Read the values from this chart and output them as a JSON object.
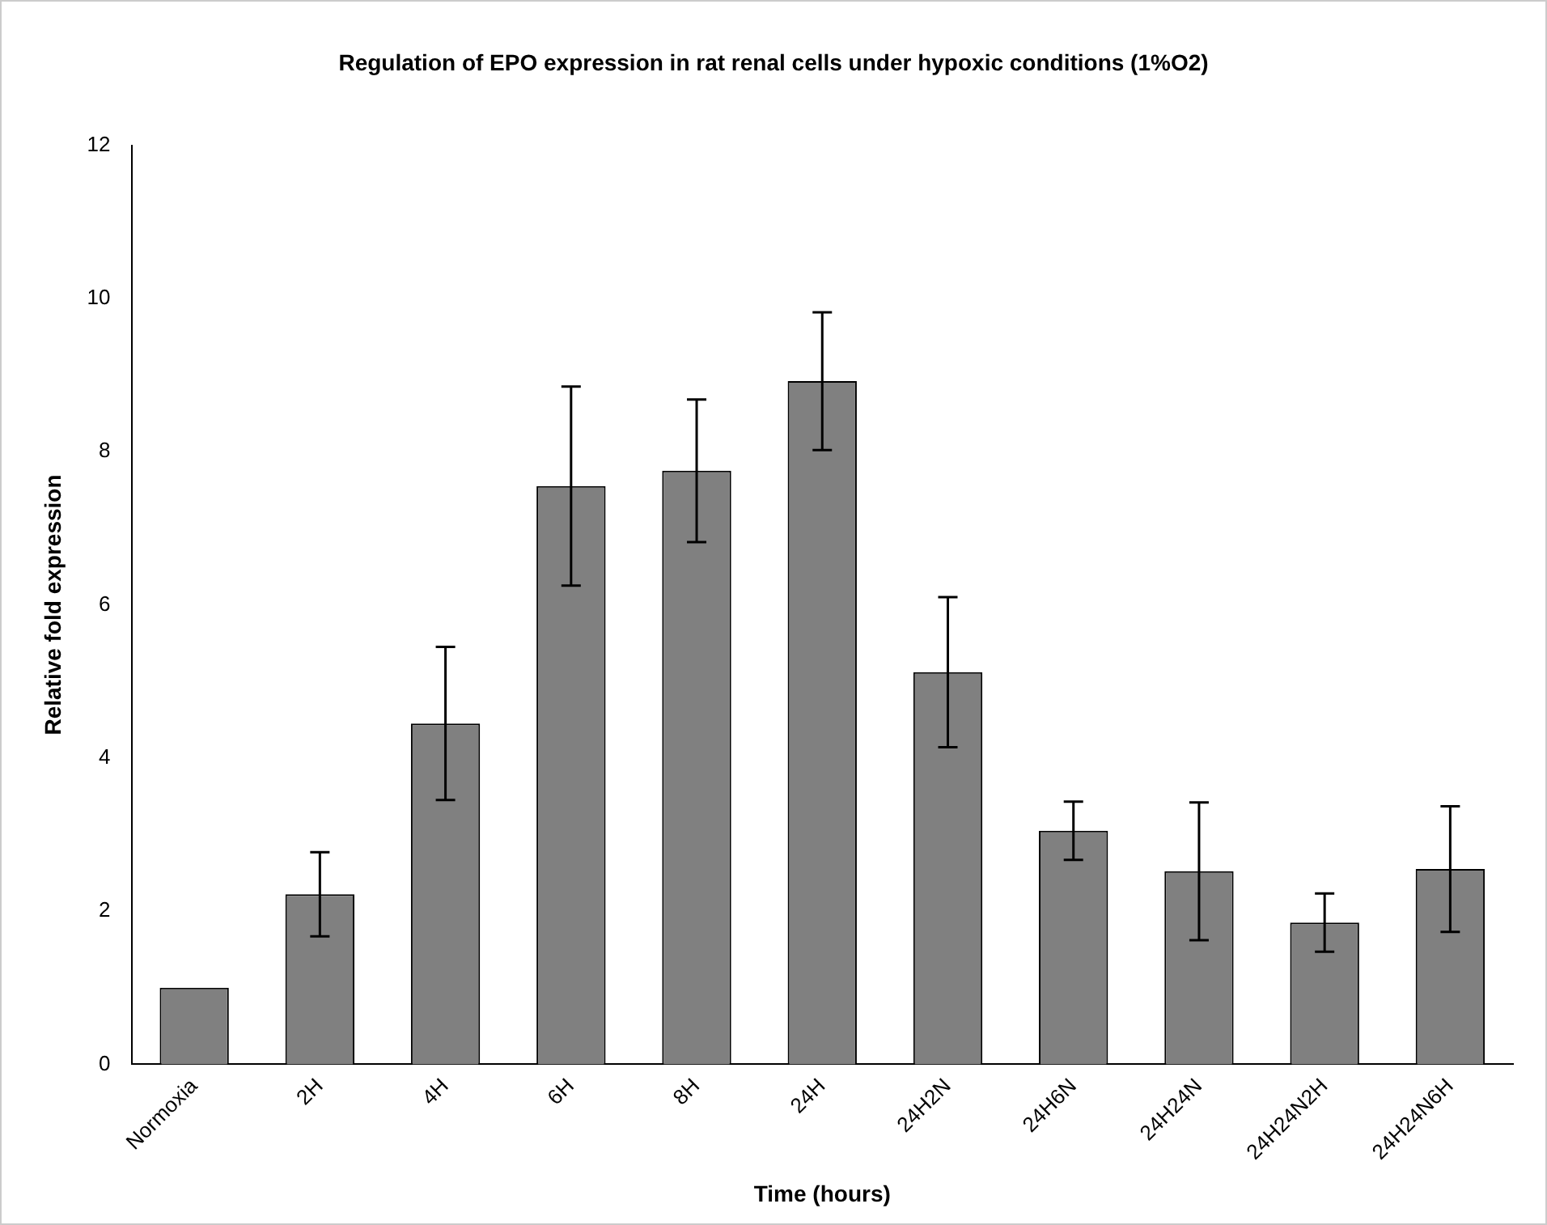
{
  "chart_data": {
    "type": "bar",
    "title": "Regulation of EPO expression in rat renal cells under hypoxic conditions (1%O2)",
    "xlabel": "Time (hours)",
    "ylabel": "Relative fold expression",
    "categories": [
      "Normoxia",
      "2H",
      "4H",
      "6H",
      "8H",
      "24H",
      "24H2N",
      "24H6N",
      "24H24N",
      "24H24N2H",
      "24H24N6H"
    ],
    "values": [
      1.0,
      2.22,
      4.45,
      7.55,
      7.75,
      8.92,
      5.12,
      3.05,
      2.52,
      1.85,
      2.55
    ],
    "errors": [
      null,
      0.55,
      1.0,
      1.3,
      0.93,
      0.9,
      0.98,
      0.38,
      0.9,
      0.38,
      0.82
    ],
    "color": "#808080",
    "ylim": [
      0,
      12
    ],
    "yticks": [
      0,
      2,
      4,
      6,
      8,
      10,
      12
    ],
    "grid": false,
    "legend": false
  }
}
